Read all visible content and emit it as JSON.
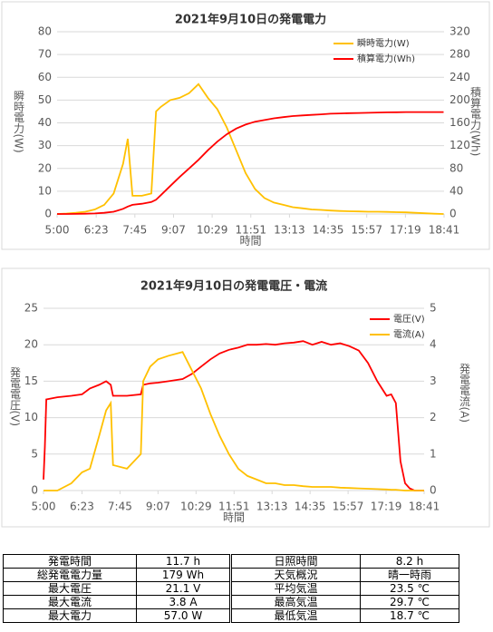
{
  "chart_data": [
    {
      "type": "line",
      "title": "2021年9月10日の発電電力",
      "xlabel": "時間",
      "ylabel": "瞬時電力(W)",
      "y2label": "積算電力(Wh)",
      "grid": true,
      "x": [
        300,
        320,
        340,
        360,
        380,
        400,
        420,
        440,
        450,
        460,
        480,
        500,
        510,
        520,
        540,
        560,
        580,
        600,
        620,
        640,
        660,
        680,
        700,
        720,
        740,
        760,
        780,
        800,
        820,
        840,
        860,
        880,
        900,
        920,
        940,
        960,
        980,
        1000,
        1020,
        1040,
        1060,
        1080,
        1100,
        1120
      ],
      "xlim": [
        300,
        1121
      ],
      "xticks": [
        {
          "value": 300,
          "label": "5:00"
        },
        {
          "value": 383,
          "label": "6:23"
        },
        {
          "value": 465,
          "label": "7:45"
        },
        {
          "value": 547,
          "label": "9:07"
        },
        {
          "value": 629,
          "label": "10:29"
        },
        {
          "value": 711,
          "label": "11:51"
        },
        {
          "value": 793,
          "label": "13:13"
        },
        {
          "value": 875,
          "label": "14:35"
        },
        {
          "value": 957,
          "label": "15:57"
        },
        {
          "value": 1039,
          "label": "17:19"
        },
        {
          "value": 1121,
          "label": "18:41"
        }
      ],
      "ylim": [
        0,
        80
      ],
      "yticks": [
        0,
        10,
        20,
        30,
        40,
        50,
        60,
        70,
        80
      ],
      "y2lim": [
        0,
        320
      ],
      "y2ticks": [
        0,
        40,
        80,
        120,
        160,
        200,
        240,
        280,
        320
      ],
      "series": [
        {
          "name": "瞬時電力(W)",
          "color": "#ffc000",
          "axis": "y",
          "values": [
            0,
            0.2,
            0.5,
            1,
            2,
            4,
            9,
            22,
            33,
            8,
            8,
            9,
            45,
            47,
            50,
            51,
            53,
            57,
            51,
            46,
            38,
            28,
            18,
            11,
            7,
            5,
            4,
            3,
            2.5,
            2,
            1.8,
            1.5,
            1.3,
            1.2,
            1.1,
            1,
            1,
            0.9,
            0.8,
            0.7,
            0.5,
            0.3,
            0.1,
            0
          ]
        },
        {
          "name": "積算電力(Wh)",
          "color": "#ff0000",
          "axis": "y2",
          "values": [
            0,
            0,
            0.2,
            0.5,
            1,
            2,
            4,
            9,
            13,
            16,
            18,
            21,
            25,
            33,
            49,
            65,
            80,
            95,
            112,
            127,
            140,
            150,
            157,
            162,
            165,
            168,
            170,
            172,
            173,
            174,
            175,
            176,
            176.5,
            177,
            177.3,
            177.7,
            178.2,
            178.5,
            178.7,
            178.9,
            179,
            179,
            179,
            179
          ]
        }
      ]
    },
    {
      "type": "line",
      "title": "2021年9月10日の発電電圧・電流",
      "xlabel": "時間",
      "ylabel": "発電電圧(V)",
      "y2label": "発電電流(A)",
      "grid": true,
      "x": [
        300,
        303,
        306,
        330,
        360,
        383,
        400,
        420,
        435,
        445,
        450,
        480,
        510,
        515,
        530,
        547,
        570,
        600,
        620,
        640,
        660,
        680,
        700,
        720,
        740,
        760,
        780,
        800,
        820,
        840,
        860,
        880,
        900,
        920,
        940,
        960,
        980,
        1000,
        1020,
        1040,
        1050,
        1060,
        1070,
        1080,
        1090,
        1100,
        1121
      ],
      "xlim": [
        300,
        1121
      ],
      "xticks": [
        {
          "value": 300,
          "label": "5:00"
        },
        {
          "value": 383,
          "label": "6:23"
        },
        {
          "value": 465,
          "label": "7:45"
        },
        {
          "value": 547,
          "label": "9:07"
        },
        {
          "value": 629,
          "label": "10:29"
        },
        {
          "value": 711,
          "label": "11:51"
        },
        {
          "value": 793,
          "label": "13:13"
        },
        {
          "value": 875,
          "label": "14:35"
        },
        {
          "value": 957,
          "label": "15:57"
        },
        {
          "value": 1039,
          "label": "17:19"
        },
        {
          "value": 1121,
          "label": "18:41"
        }
      ],
      "ylim": [
        0,
        25
      ],
      "yticks": [
        0,
        5,
        10,
        15,
        20,
        25
      ],
      "y2lim": [
        0,
        5
      ],
      "y2ticks": [
        0,
        1,
        2,
        3,
        4,
        5
      ],
      "series": [
        {
          "name": "電圧(V)",
          "color": "#ff0000",
          "axis": "y",
          "values": [
            1.5,
            6,
            12.5,
            12.8,
            13,
            13.2,
            14,
            14.5,
            15,
            14.5,
            13,
            13,
            13.2,
            14.5,
            14.7,
            14.8,
            15,
            15.3,
            16,
            17,
            18,
            18.8,
            19.3,
            19.6,
            20,
            20,
            20.1,
            20,
            20.2,
            20.3,
            20.5,
            20,
            20.4,
            20,
            20.2,
            19.8,
            19.2,
            17.5,
            15,
            13,
            13.2,
            12,
            4,
            1,
            0.3,
            0,
            0
          ]
        },
        {
          "name": "電流(A)",
          "color": "#ffc000",
          "axis": "y2",
          "values": [
            0,
            0,
            0,
            0,
            0.2,
            0.5,
            0.6,
            1.5,
            2.2,
            2.4,
            0.7,
            0.6,
            1,
            3,
            3.4,
            3.6,
            3.7,
            3.8,
            3.3,
            2.8,
            2.1,
            1.5,
            1,
            0.6,
            0.4,
            0.3,
            0.2,
            0.2,
            0.15,
            0.15,
            0.12,
            0.1,
            0.1,
            0.1,
            0.08,
            0.07,
            0.06,
            0.05,
            0.04,
            0.03,
            0.02,
            0.02,
            0.01,
            0,
            0,
            0,
            0
          ]
        }
      ]
    }
  ],
  "table": {
    "rows": [
      [
        "発電時間",
        "11.7 h",
        "日照時間",
        "8.2 h"
      ],
      [
        "総発電電力量",
        "179 Wh",
        "天気概況",
        "晴一時雨"
      ],
      [
        "最大電圧",
        "21.1 V",
        "平均気温",
        "23.5 ℃"
      ],
      [
        "最大電流",
        "3.8 A",
        "最高気温",
        "29.7 ℃"
      ],
      [
        "最大電力",
        "57.0 W",
        "最低気温",
        "18.7 ℃"
      ]
    ]
  }
}
